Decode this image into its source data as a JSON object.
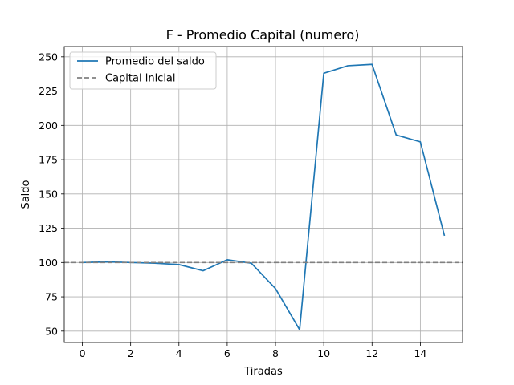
{
  "chart_data": {
    "type": "line",
    "title": "F - Promedio Capital (numero)",
    "xlabel": "Tiradas",
    "ylabel": "Saldo",
    "xlim": [
      -0.75,
      15.75
    ],
    "ylim": [
      41.7,
      257.5
    ],
    "xticks": [
      0,
      2,
      4,
      6,
      8,
      10,
      12,
      14
    ],
    "yticks": [
      50,
      75,
      100,
      125,
      150,
      175,
      200,
      225,
      250
    ],
    "grid": true,
    "legend_position": "top-left",
    "series": [
      {
        "name": "Promedio del saldo",
        "color": "#1f77b4",
        "style": "solid",
        "x": [
          0,
          1,
          2,
          3,
          4,
          5,
          6,
          7,
          8,
          9,
          10,
          11,
          12,
          13,
          14,
          15
        ],
        "y": [
          100,
          100.5,
          100,
          99.5,
          98.5,
          94,
          102,
          99.5,
          81,
          51,
          238,
          243.5,
          244.5,
          193,
          188,
          119.5
        ]
      },
      {
        "name": "Capital inicial",
        "color": "#808080",
        "style": "dashed",
        "x": [
          -0.75,
          15.75
        ],
        "y": [
          100,
          100
        ]
      }
    ]
  }
}
